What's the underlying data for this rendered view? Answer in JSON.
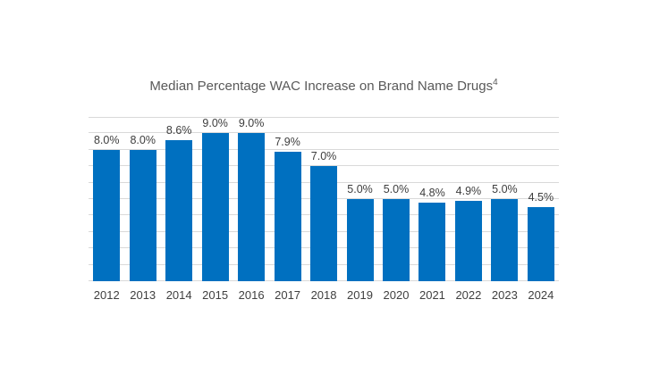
{
  "page": {
    "background": "#ffffff"
  },
  "chart_data": {
    "type": "bar",
    "title": "Median Percentage WAC Increase on Brand Name Drugs",
    "title_superscript": "4",
    "categories": [
      "2012",
      "2013",
      "2014",
      "2015",
      "2016",
      "2017",
      "2018",
      "2019",
      "2020",
      "2021",
      "2022",
      "2023",
      "2024"
    ],
    "values": [
      8.0,
      8.0,
      8.6,
      9.0,
      9.0,
      7.9,
      7.0,
      5.0,
      5.0,
      4.8,
      4.9,
      5.0,
      4.5
    ],
    "value_labels": [
      "8.0%",
      "8.0%",
      "8.6%",
      "9.0%",
      "9.0%",
      "7.9%",
      "7.0%",
      "5.0%",
      "5.0%",
      "4.8%",
      "4.9%",
      "5.0%",
      "4.5%"
    ],
    "xlabel": "",
    "ylabel": "",
    "ylim": [
      0,
      10
    ],
    "gridline_step": 1,
    "grid": "horizontal",
    "legend": "none",
    "y_axis_labels_visible": false,
    "colors": {
      "bar": "#0070c0",
      "gridline": "#d9d9d9",
      "title": "#595959",
      "value_label": "#3d3d3d",
      "tick_label": "#404040"
    }
  }
}
